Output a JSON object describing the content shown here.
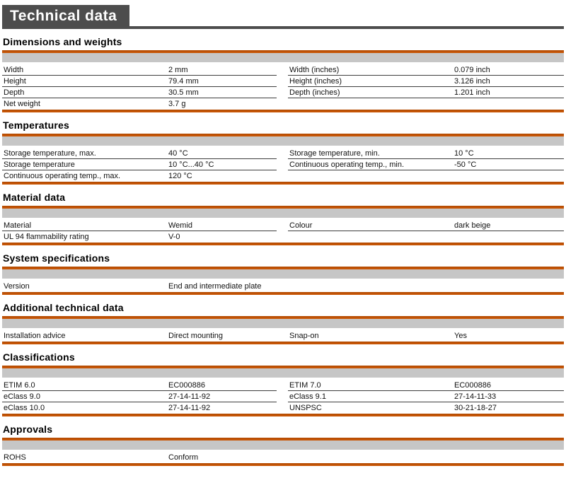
{
  "page": {
    "title": "Technical data"
  },
  "colors": {
    "accent_orange": "#C65305",
    "header_bar_gray": "#C6C6C6",
    "title_box_gray": "#4D4D4D",
    "row_divider": "#3D3D3D"
  },
  "sections": [
    {
      "title": "Dimensions and weights",
      "left": [
        {
          "label": "Width",
          "value": "2 mm"
        },
        {
          "label": "Height",
          "value": "79.4 mm"
        },
        {
          "label": "Depth",
          "value": "30.5 mm"
        },
        {
          "label": "Net weight",
          "value": "3.7 g"
        }
      ],
      "right": [
        {
          "label": "Width (inches)",
          "value": "0.079 inch"
        },
        {
          "label": "Height (inches)",
          "value": "3.126 inch"
        },
        {
          "label": "Depth (inches)",
          "value": "1.201 inch"
        }
      ]
    },
    {
      "title": "Temperatures",
      "left": [
        {
          "label": "Storage temperature, max.",
          "value": "40 °C"
        },
        {
          "label": "Storage temperature",
          "value": "10 °C...40 °C"
        },
        {
          "label": "Continuous operating temp., max.",
          "value": "120 °C"
        }
      ],
      "right": [
        {
          "label": "Storage temperature, min.",
          "value": "10 °C"
        },
        {
          "label": "Continuous operating temp., min.",
          "value": "-50 °C"
        }
      ]
    },
    {
      "title": "Material data",
      "left": [
        {
          "label": "Material",
          "value": "Wemid"
        },
        {
          "label": "UL 94 flammability rating",
          "value": "V-0"
        }
      ],
      "right": [
        {
          "label": "Colour",
          "value": "dark beige"
        }
      ]
    },
    {
      "title": "System specifications",
      "left": [
        {
          "label": "Version",
          "value": "End and intermediate plate"
        }
      ],
      "right": []
    },
    {
      "title": "Additional technical data",
      "left": [
        {
          "label": "Installation advice",
          "value": "Direct mounting"
        }
      ],
      "right": [
        {
          "label": "Snap-on",
          "value": "Yes"
        }
      ]
    },
    {
      "title": "Classifications",
      "left": [
        {
          "label": "ETIM 6.0",
          "value": "EC000886"
        },
        {
          "label": "eClass 9.0",
          "value": "27-14-11-92"
        },
        {
          "label": "eClass 10.0",
          "value": "27-14-11-92"
        }
      ],
      "right": [
        {
          "label": "ETIM 7.0",
          "value": "EC000886"
        },
        {
          "label": "eClass 9.1",
          "value": "27-14-11-33"
        },
        {
          "label": "UNSPSC",
          "value": "30-21-18-27"
        }
      ]
    },
    {
      "title": "Approvals",
      "left": [
        {
          "label": "ROHS",
          "value": "Conform"
        }
      ],
      "right": []
    }
  ]
}
